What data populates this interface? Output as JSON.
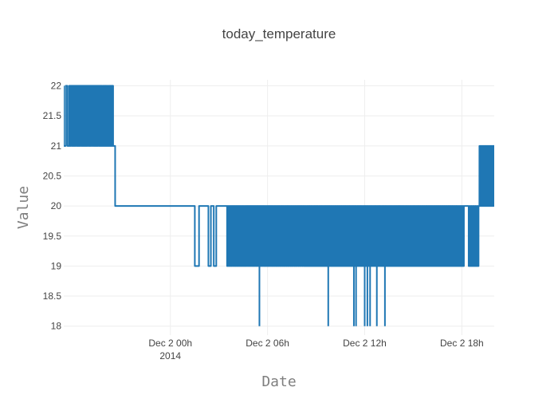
{
  "chart_data": {
    "type": "line",
    "title": "today_temperature",
    "xlabel": "Date",
    "ylabel": "Value",
    "x_range": [
      "2014-12-01 17:25",
      "2014-12-02 20:00"
    ],
    "ylim": [
      17.85,
      22.1
    ],
    "y_ticks": [
      "22",
      "21.5",
      "21",
      "20.5",
      "20",
      "19.5",
      "19",
      "18.5",
      "18"
    ],
    "x_ticks": [
      {
        "t": "2014-12-02 00:00",
        "label": "Dec 2 00h",
        "sublabel": "2014"
      },
      {
        "t": "2014-12-02 06:00",
        "label": "Dec 2 06h",
        "sublabel": ""
      },
      {
        "t": "2014-12-02 12:00",
        "label": "Dec 2 12h",
        "sublabel": ""
      },
      {
        "t": "2014-12-02 18:00",
        "label": "Dec 2 18h",
        "sublabel": ""
      }
    ],
    "grid": true,
    "color": "#1f77b4",
    "series": [
      {
        "segments": [
          {
            "start": "2014-12-01 17:25",
            "end": "2014-12-01 17:45",
            "low": 21,
            "high": 22,
            "switches": 3
          },
          {
            "start": "2014-12-01 17:45",
            "end": "2014-12-01 20:30",
            "low": 21,
            "high": 22,
            "switches": 75
          },
          {
            "start": "2014-12-01 20:30",
            "end": "2014-12-01 20:35",
            "low": 21,
            "high": 21,
            "switches": 0
          },
          {
            "start": "2014-12-01 20:35",
            "end": "2014-12-01 20:45",
            "low": 20,
            "high": 21,
            "switches": 1
          },
          {
            "start": "2014-12-01 20:45",
            "end": "2014-12-02 01:30",
            "low": 20,
            "high": 20,
            "switches": 0
          },
          {
            "start": "2014-12-02 01:30",
            "end": "2014-12-02 02:00",
            "low": 19,
            "high": 20,
            "switches": 2
          },
          {
            "start": "2014-12-02 02:00",
            "end": "2014-12-02 02:20",
            "low": 20,
            "high": 20,
            "switches": 0
          },
          {
            "start": "2014-12-02 02:20",
            "end": "2014-12-02 03:00",
            "low": 19,
            "high": 20,
            "switches": 4
          },
          {
            "start": "2014-12-02 03:00",
            "end": "2014-12-02 03:30",
            "low": 20,
            "high": 20,
            "switches": 0
          },
          {
            "start": "2014-12-02 03:30",
            "end": "2014-12-02 18:10",
            "low": 19,
            "high": 20,
            "switches": 360
          },
          {
            "start": "2014-12-02 18:10",
            "end": "2014-12-02 18:25",
            "low": 20,
            "high": 20,
            "switches": 0
          },
          {
            "start": "2014-12-02 18:25",
            "end": "2014-12-02 19:05",
            "low": 19,
            "high": 20,
            "switches": 12
          },
          {
            "start": "2014-12-02 19:05",
            "end": "2014-12-02 20:00",
            "low": 20,
            "high": 21,
            "switches": 40
          }
        ],
        "dips": [
          {
            "t": "2014-12-02 05:30",
            "v": 18
          },
          {
            "t": "2014-12-02 09:45",
            "v": 18
          },
          {
            "t": "2014-12-02 11:20",
            "v": 18
          },
          {
            "t": "2014-12-02 11:28",
            "v": 18
          },
          {
            "t": "2014-12-02 12:00",
            "v": 18
          },
          {
            "t": "2014-12-02 12:10",
            "v": 18
          },
          {
            "t": "2014-12-02 12:20",
            "v": 18
          },
          {
            "t": "2014-12-02 12:45",
            "v": 18
          },
          {
            "t": "2014-12-02 13:15",
            "v": 18
          }
        ]
      }
    ]
  }
}
